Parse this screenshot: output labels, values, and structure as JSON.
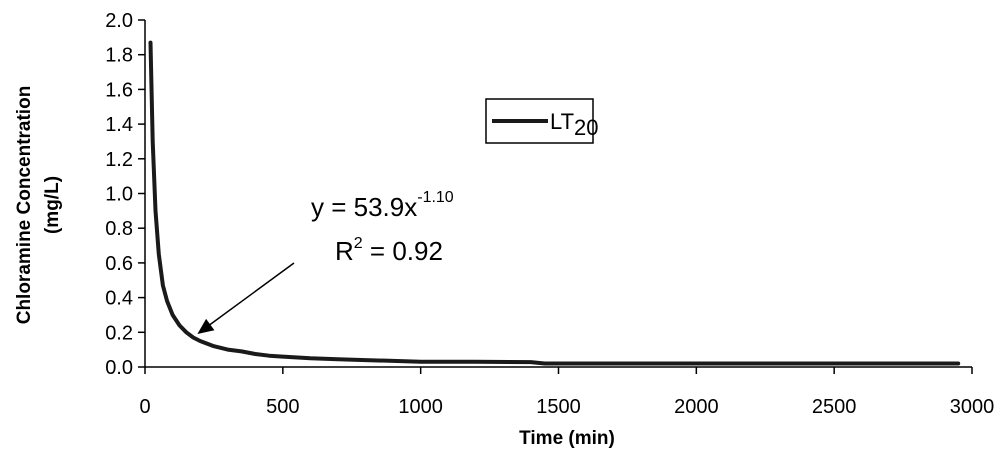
{
  "chart_data": {
    "type": "line",
    "title": "",
    "xlabel": "Time (min)",
    "ylabel_line1": "Chloramine Concentration",
    "ylabel_line2": "(mg/L)",
    "xlim": [
      0,
      3000
    ],
    "ylim": [
      0,
      2.0
    ],
    "x_ticks": [
      "0",
      "500",
      "1000",
      "1500",
      "2000",
      "2500",
      "3000"
    ],
    "y_ticks": [
      "0.0",
      "0.2",
      "0.4",
      "0.6",
      "0.8",
      "1.0",
      "1.2",
      "1.4",
      "1.6",
      "1.8",
      "2.0"
    ],
    "grid": false,
    "legend": {
      "position": "right of center, upper",
      "label_main": "LT",
      "label_sub": "20"
    },
    "series": [
      {
        "name": "LT20",
        "color": "#1a1a1a",
        "x": [
          20,
          28,
          38,
          50,
          65,
          80,
          100,
          125,
          150,
          175,
          200,
          250,
          300,
          350,
          400,
          450,
          500,
          600,
          700,
          800,
          900,
          1000,
          1200,
          1400,
          1450,
          1600,
          2000,
          2500,
          2950
        ],
        "y": [
          1.87,
          1.3,
          0.9,
          0.65,
          0.47,
          0.38,
          0.3,
          0.24,
          0.2,
          0.17,
          0.15,
          0.12,
          0.1,
          0.09,
          0.075,
          0.065,
          0.06,
          0.05,
          0.045,
          0.04,
          0.035,
          0.03,
          0.03,
          0.028,
          0.02,
          0.02,
          0.02,
          0.02,
          0.02
        ]
      }
    ],
    "annotations": {
      "equation_main": "y = 53.9x",
      "equation_exp": "-1.10",
      "r2_main": "R",
      "r2_exp": "2",
      "r2_value": " = 0.92",
      "arrow_target": {
        "x": 190,
        "y": 0.19
      }
    }
  }
}
